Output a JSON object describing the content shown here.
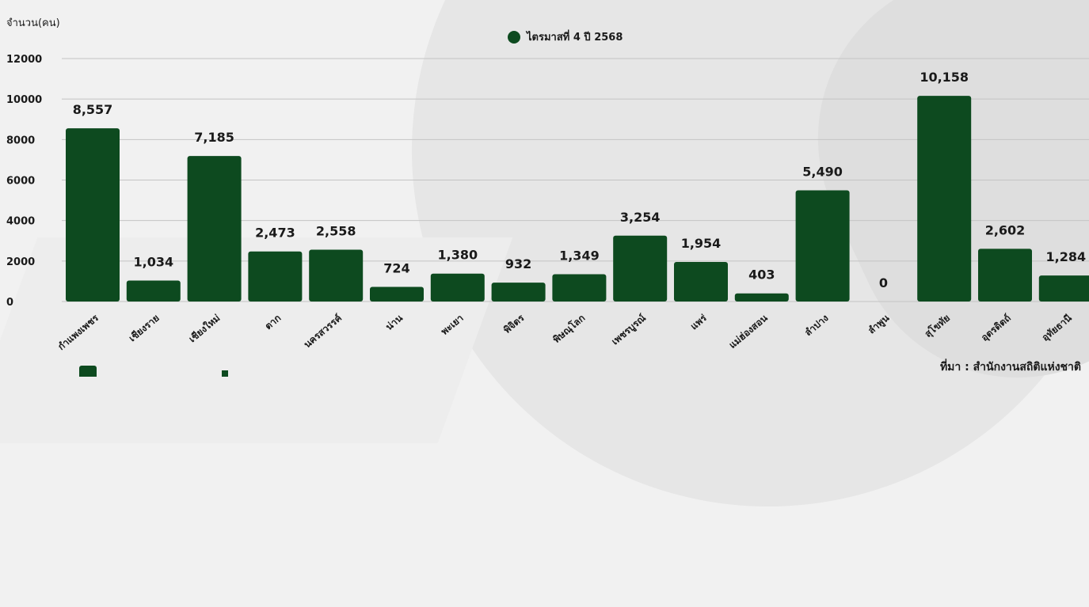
{
  "chart_data": {
    "type": "bar",
    "categories": [
      "กำแพงเพชร",
      "เชียงราย",
      "เชียงใหม่",
      "ตาก",
      "นครสวรรค์",
      "น่าน",
      "พะเยา",
      "พิจิตร",
      "พิษณุโลก",
      "เพชรบูรณ์",
      "แพร่",
      "แม่ฮ่องสอน",
      "ลำปาง",
      "ลำพูน",
      "สุโขทัย",
      "อุตรดิตถ์",
      "อุทัยธานี"
    ],
    "series": [
      {
        "name": "ไตรมาสที่ 4 ปี 2568",
        "values": [
          8557,
          1034,
          7185,
          2473,
          2558,
          724,
          1380,
          932,
          1349,
          3254,
          1954,
          403,
          5490,
          0,
          10158,
          2602,
          1284
        ]
      }
    ],
    "value_labels": [
      "8,557",
      "1,034",
      "7,185",
      "2,473",
      "2,558",
      "724",
      "1,380",
      "932",
      "1,349",
      "3,254",
      "1,954",
      "403",
      "5,490",
      "0",
      "10,158",
      "2,602",
      "1,284"
    ],
    "ylabel": "จำนวน(คน)",
    "ylim": [
      0,
      12000
    ],
    "yticks": [
      0,
      2000,
      4000,
      6000,
      8000,
      10000,
      12000
    ],
    "ytick_labels": [
      "0",
      "2000",
      "4000",
      "6000",
      "8000",
      "10000",
      "12000"
    ],
    "grid": true,
    "legend_position": "top-center",
    "bar_color": "#0d4a1f"
  },
  "source": "ที่มา : สำนักงานสถิติแห่งชาติ"
}
